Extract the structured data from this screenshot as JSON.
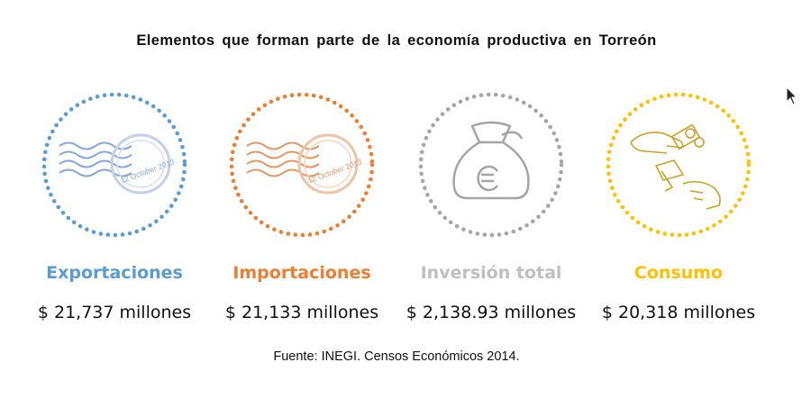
{
  "title": "Elementos que forman parte de la economía productiva en Torreón",
  "items": [
    {
      "label": "Exportaciones",
      "value": "$ 21,737 millones",
      "color": "#5b9bd5",
      "icon": "postmark-icon",
      "stamp_date": "12 October 2013"
    },
    {
      "label": "Importaciones",
      "value": "$ 21,133 millones",
      "color": "#ed7d31",
      "icon": "postmark-icon",
      "stamp_date": "12 October 2013"
    },
    {
      "label": "Inversión total",
      "value": "$ 2,138.93 millones",
      "color": "#a5a5a5",
      "icon": "euro-money-bag-icon"
    },
    {
      "label": "Consumo",
      "value": "$ 20,318 millones",
      "color": "#ffc000",
      "icon": "hands-exchanging-money-icon"
    }
  ],
  "source": "Fuente: INEGI. Censos Económicos 2014."
}
